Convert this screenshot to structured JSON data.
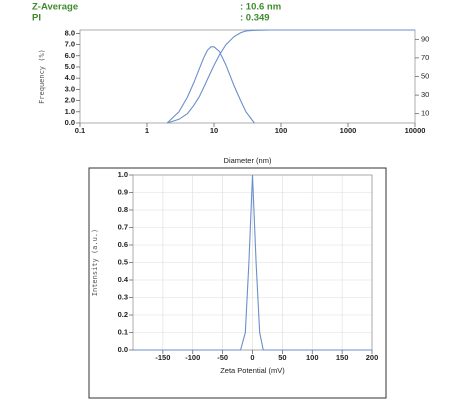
{
  "chart_data": [
    {
      "type": "line",
      "annotations": [
        "Z-Average",
        ": 10.6 nm",
        "PI",
        ": 0.349"
      ],
      "xlabel": "Diameter (nm)",
      "ylabel": "Frequency (%)",
      "xscale": "log",
      "xlim": [
        0.1,
        10000
      ],
      "xticks": [
        0.1,
        1,
        10,
        100,
        1000,
        10000
      ],
      "ylim": [
        0,
        8.3
      ],
      "yticks": [
        {
          "value": 0,
          "label": "0.0"
        },
        {
          "value": 1,
          "label": "1.0"
        },
        {
          "value": 2,
          "label": "2.0"
        },
        {
          "value": 3,
          "label": "3.0"
        },
        {
          "value": 4,
          "label": "4.0"
        },
        {
          "value": 5,
          "label": "5.0"
        },
        {
          "value": 6,
          "label": "6.0"
        },
        {
          "value": 7,
          "label": "7.0"
        },
        {
          "value": 8,
          "label": "8.0"
        }
      ],
      "y2lim": [
        0,
        100
      ],
      "y2ticks": [
        10,
        30,
        50,
        70,
        90
      ],
      "grid": false,
      "series": [
        {
          "color": "#6b8fca",
          "x": [
            2,
            3,
            4,
            5,
            6,
            7,
            8,
            9,
            10,
            12,
            15,
            20,
            25,
            30,
            40
          ],
          "values": [
            0,
            1.0,
            2.3,
            3.6,
            4.8,
            5.8,
            6.5,
            6.8,
            6.8,
            6.4,
            5.2,
            3.3,
            2.0,
            1.0,
            0
          ]
        },
        {
          "color": "#6b8fca",
          "axis": "y2",
          "x": [
            2,
            3,
            4,
            5,
            6,
            7,
            8,
            9,
            10,
            12,
            15,
            20,
            25,
            30,
            40,
            70,
            10000
          ],
          "values": [
            0,
            4,
            10,
            19,
            28,
            38,
            47,
            55,
            62,
            73,
            84,
            93,
            97,
            99,
            99.7,
            100,
            100
          ]
        }
      ]
    },
    {
      "type": "line",
      "xlabel": "Zeta Potential (mV)",
      "ylabel": "Intensity (a.u.)",
      "xlim": [
        -200,
        200
      ],
      "xticks": [
        -150,
        -100,
        -50,
        0,
        50,
        100,
        150,
        200
      ],
      "ylim": [
        0,
        1.0
      ],
      "yticks": [
        {
          "value": 0,
          "label": "0.0"
        },
        {
          "value": 0.1,
          "label": "0.1"
        },
        {
          "value": 0.2,
          "label": "0.2"
        },
        {
          "value": 0.3,
          "label": "0.3"
        },
        {
          "value": 0.4,
          "label": "0.4"
        },
        {
          "value": 0.5,
          "label": "0.5"
        },
        {
          "value": 0.6,
          "label": "0.6"
        },
        {
          "value": 0.7,
          "label": "0.7"
        },
        {
          "value": 0.8,
          "label": "0.8"
        },
        {
          "value": 0.9,
          "label": "0.9"
        },
        {
          "value": 1.0,
          "label": "1.0"
        }
      ],
      "grid": true,
      "series": [
        {
          "color": "#6b8fca",
          "x": [
            -200,
            -20,
            -12,
            -6,
            0,
            6,
            12,
            18,
            200
          ],
          "values": [
            0,
            0,
            0.1,
            0.5,
            1.0,
            0.5,
            0.1,
            0,
            0
          ]
        }
      ]
    }
  ]
}
